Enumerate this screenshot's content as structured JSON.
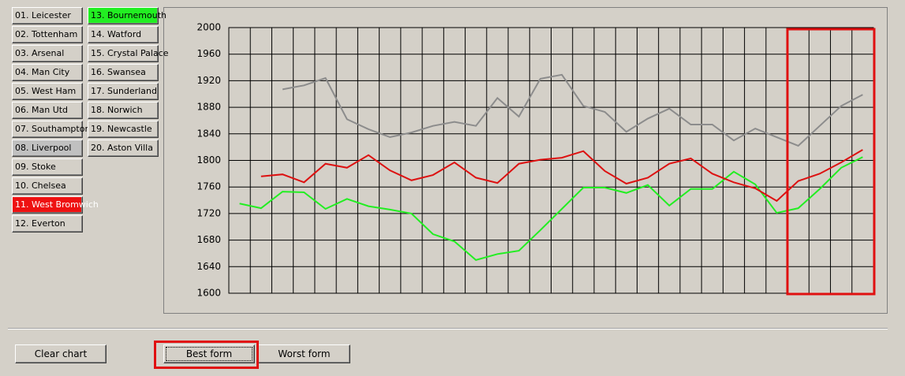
{
  "teams": [
    {
      "label": "01. Leicester"
    },
    {
      "label": "02. Tottenham"
    },
    {
      "label": "03. Arsenal"
    },
    {
      "label": "04. Man City"
    },
    {
      "label": "05. West Ham"
    },
    {
      "label": "06. Man Utd"
    },
    {
      "label": "07. Southampton"
    },
    {
      "label": "08. Liverpool",
      "color": "#c0c0c0"
    },
    {
      "label": "09. Stoke"
    },
    {
      "label": "10. Chelsea"
    },
    {
      "label": "11. West Bromwich",
      "color": "#ee1111"
    },
    {
      "label": "12. Everton"
    },
    {
      "label": "13. Bournemouth",
      "color": "#22ee22"
    },
    {
      "label": "14. Watford"
    },
    {
      "label": "15. Crystal Palace"
    },
    {
      "label": "16. Swansea"
    },
    {
      "label": "17. Sunderland"
    },
    {
      "label": "18. Norwich"
    },
    {
      "label": "19. Newcastle"
    },
    {
      "label": "20. Aston Villa"
    }
  ],
  "buttons": {
    "clear": "Clear chart",
    "best": "Best form",
    "worst": "Worst form"
  },
  "chart_data": {
    "type": "line",
    "categories": [
      null,
      null,
      null,
      null,
      null,
      null,
      null,
      null,
      null,
      null,
      null,
      null,
      null,
      null,
      null,
      null,
      null,
      null,
      null,
      null,
      null,
      null,
      null,
      null,
      null,
      null,
      null,
      null,
      null,
      null
    ],
    "ylim": [
      1600,
      2000
    ],
    "yticks": [
      1600,
      1640,
      1680,
      1720,
      1760,
      1800,
      1840,
      1880,
      1920,
      1960,
      2000
    ],
    "grid": true,
    "series": [
      {
        "color": "#22ee22",
        "values": [
          1735,
          1728,
          1753,
          1752,
          1727,
          1742,
          1731,
          1726,
          1720,
          1689,
          1678,
          1650,
          1659,
          1664,
          1695,
          1727,
          1759,
          1759,
          1751,
          1763,
          1732,
          1757,
          1757,
          1783,
          1764,
          1721,
          1728,
          1757,
          1789,
          1805
        ]
      },
      {
        "color": "#dd1111",
        "values": [
          null,
          1776,
          1779,
          1767,
          1795,
          1789,
          1808,
          1785,
          1770,
          1778,
          1797,
          1774,
          1766,
          1795,
          1801,
          1804,
          1814,
          1784,
          1765,
          1774,
          1795,
          1803,
          1780,
          1767,
          1758,
          1739,
          1769,
          1780,
          1797,
          1816
        ]
      },
      {
        "color": "#8c8c8c",
        "values": [
          null,
          null,
          1907,
          1913,
          1924,
          1862,
          1847,
          1835,
          1842,
          1852,
          1858,
          1852,
          1894,
          1866,
          1923,
          1929,
          1882,
          1873,
          1843,
          1863,
          1878,
          1854,
          1854,
          1830,
          1848,
          1835,
          1822,
          1852,
          1882,
          1899
        ]
      }
    ]
  }
}
